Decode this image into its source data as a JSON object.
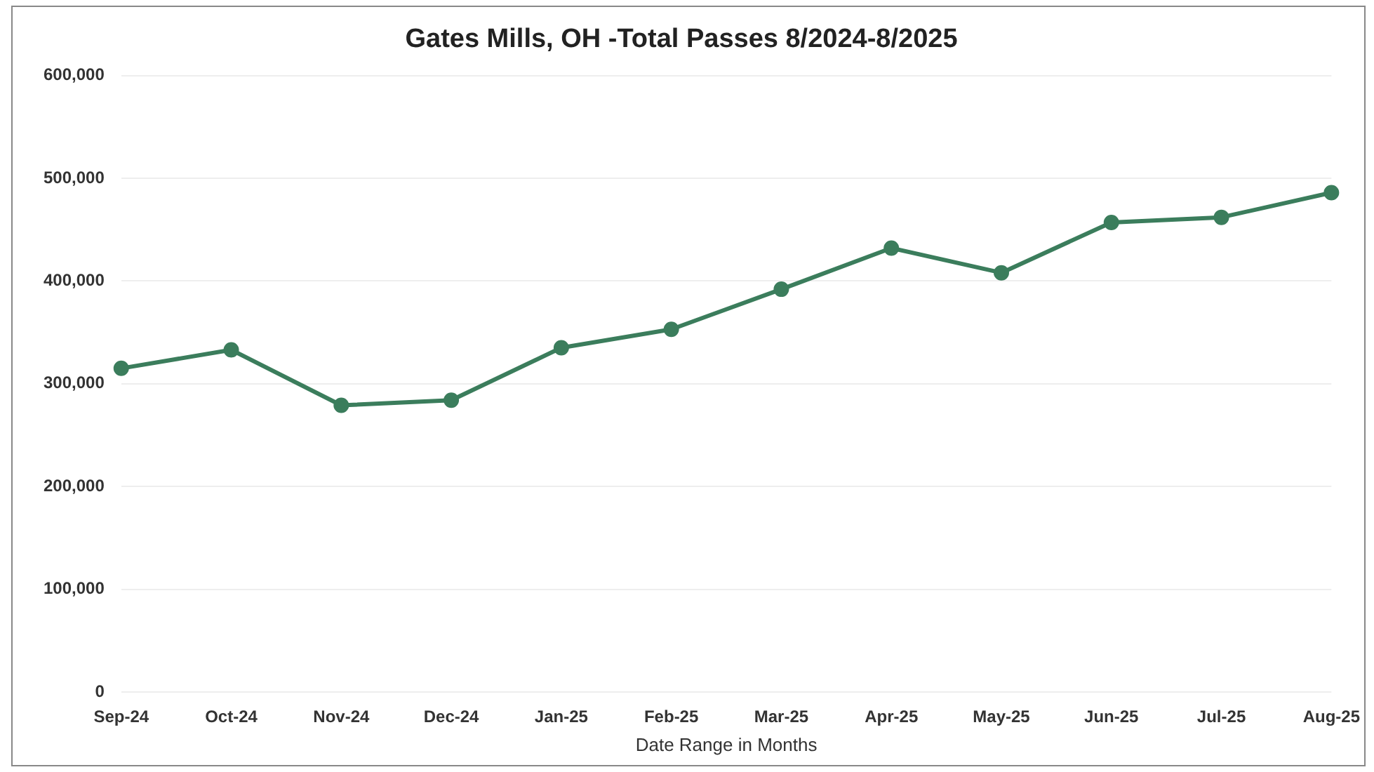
{
  "chart_data": {
    "type": "line",
    "title": "Gates Mills, OH -Total Passes 8/2024-8/2025",
    "xlabel": "Date Range in Months",
    "categories": [
      "Sep-24",
      "Oct-24",
      "Nov-24",
      "Dec-24",
      "Jan-25",
      "Feb-25",
      "Mar-25",
      "Apr-25",
      "May-25",
      "Jun-25",
      "Jul-25",
      "Aug-25"
    ],
    "series": [
      {
        "color": "#3b7d5c",
        "values": [
          315000,
          333000,
          279000,
          284000,
          335000,
          353000,
          392000,
          432000,
          408000,
          457000,
          462000,
          486000
        ]
      }
    ],
    "ylim": [
      0,
      600000
    ],
    "yticks": [
      0,
      {
        "value": 100000,
        "label": "100,000"
      },
      {
        "value": 200000,
        "label": "200,000"
      },
      {
        "value": 300000,
        "label": "300,000"
      },
      {
        "value": 400000,
        "label": "400,000"
      },
      {
        "value": 500000,
        "label": "500,000"
      },
      {
        "value": 600000,
        "label": "600,000"
      }
    ],
    "grid": "y",
    "legend": false,
    "marker": "circle",
    "line_style": "solid"
  }
}
